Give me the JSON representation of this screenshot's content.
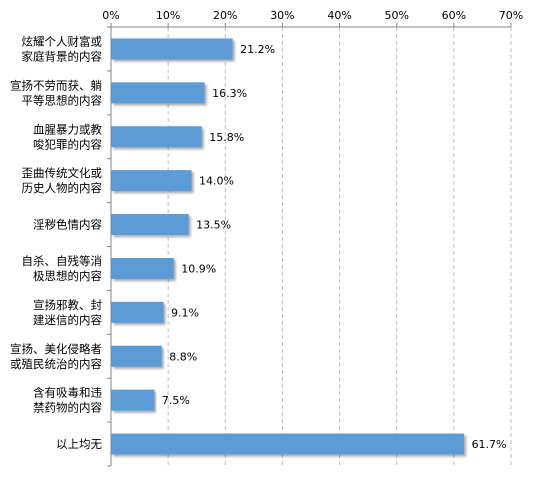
{
  "chart_data": {
    "type": "bar",
    "orientation": "horizontal",
    "title": "",
    "xlabel": "",
    "ylabel": "",
    "xlim": [
      0,
      70
    ],
    "x_tick_labels": [
      "0%",
      "10%",
      "20%",
      "30%",
      "40%",
      "50%",
      "60%",
      "70%"
    ],
    "x_ticks": [
      0,
      10,
      20,
      30,
      40,
      50,
      60,
      70
    ],
    "x_axis_position": "top",
    "grid": "vertical dashed",
    "legend": "none",
    "bar_color": "#5B9BD5",
    "categories": [
      [
        "炫耀个人财富或",
        "家庭背景的内容"
      ],
      [
        "宣扬不劳而获、躺",
        "平等思想的内容"
      ],
      [
        "血腥暴力或教",
        "唆犯罪的内容"
      ],
      [
        "歪曲传统文化或",
        "历史人物的内容"
      ],
      [
        "淫秽色情内容"
      ],
      [
        "自杀、自残等消",
        "极思想的内容"
      ],
      [
        "宣扬邪教、封",
        "建迷信的内容"
      ],
      [
        "宣扬、美化侵略者",
        "或殖民统治的内容"
      ],
      [
        "含有吸毒和违",
        "禁药物的内容"
      ],
      [
        "以上均无"
      ]
    ],
    "values": [
      21.2,
      16.3,
      15.8,
      14.0,
      13.5,
      10.9,
      9.1,
      8.8,
      7.5,
      61.7
    ],
    "value_labels": [
      "21.2%",
      "16.3%",
      "15.8%",
      "14.0%",
      "13.5%",
      "10.9%",
      "9.1%",
      "8.8%",
      "7.5%",
      "61.7%"
    ]
  }
}
